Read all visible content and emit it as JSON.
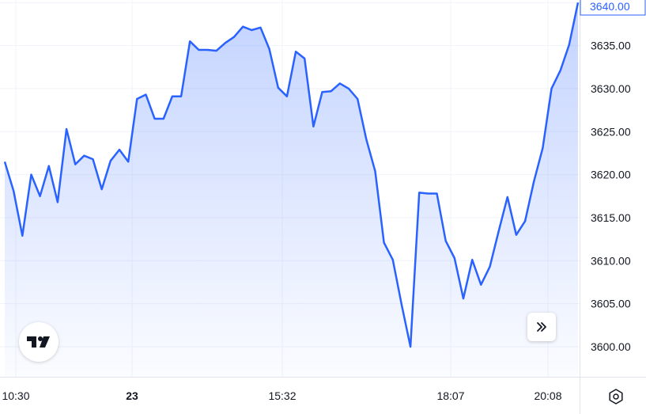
{
  "chart_data": {
    "type": "area",
    "y_ticks": [
      "3600.00",
      "3605.00",
      "3610.00",
      "3615.00",
      "3620.00",
      "3625.00",
      "3630.00",
      "3635.00",
      "3640.00"
    ],
    "x_ticks": [
      {
        "label": "10:30",
        "bold": false
      },
      {
        "label": "23",
        "bold": true
      },
      {
        "label": "15:32",
        "bold": false
      },
      {
        "label": "18:07",
        "bold": false
      },
      {
        "label": "20:08",
        "bold": false
      }
    ],
    "ylim": [
      3596.5,
      3640.3
    ],
    "last_value_label": "3640.00",
    "grid": true,
    "colors": {
      "line": "#2962ff",
      "fill": "#2962ff",
      "grid": "#f0f3fa",
      "axis_text": "#131722"
    },
    "values": [
      3621.5,
      3618.1,
      3612.9,
      3620.0,
      3617.5,
      3621.0,
      3616.8,
      3625.3,
      3621.2,
      3622.2,
      3621.8,
      3618.3,
      3621.6,
      3622.9,
      3621.5,
      3628.8,
      3629.3,
      3626.5,
      3626.5,
      3629.1,
      3629.1,
      3635.5,
      3634.5,
      3634.5,
      3634.4,
      3635.3,
      3636.0,
      3637.2,
      3636.8,
      3637.1,
      3634.6,
      3630.1,
      3629.1,
      3634.3,
      3633.5,
      3625.6,
      3629.6,
      3629.7,
      3630.6,
      3630.0,
      3628.8,
      3624.1,
      3620.4,
      3612.1,
      3610.1,
      3604.9,
      3600.0,
      3617.9,
      3617.8,
      3617.8,
      3612.3,
      3610.3,
      3605.6,
      3610.1,
      3607.2,
      3609.3,
      3613.4,
      3617.4,
      3613.0,
      3614.6,
      3619.2,
      3623.1,
      3630.0,
      3632.1,
      3635.1,
      3640.0
    ]
  },
  "icons": {
    "logo": "tradingview-logo-icon",
    "scroll": "double-chevron-right-icon",
    "settings": "gear-icon"
  }
}
